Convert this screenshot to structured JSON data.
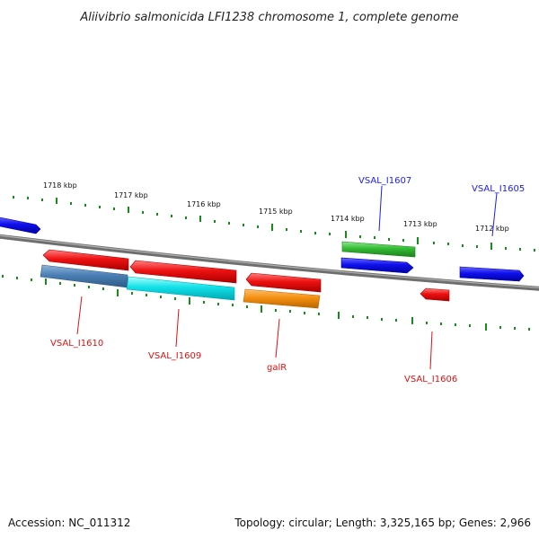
{
  "title": "Aliivibrio salmonicida LFI1238 chromosome 1, complete genome",
  "footer": {
    "accession": "Accession: NC_011312",
    "summary": "Topology: circular; Length: 3,325,165 bp; Genes: 2,966"
  },
  "scale_labels": [
    "1718 kbp",
    "1717 kbp",
    "1716 kbp",
    "1715 kbp",
    "1714 kbp",
    "1713 kbp",
    "1712 kbp"
  ],
  "gene_labels": [
    {
      "text": "VSAL_I1607",
      "color": "#1a1aff"
    },
    {
      "text": "VSAL_I1605",
      "color": "#1a1aff"
    },
    {
      "text": "VSAL_I1610",
      "color": "#e01010"
    },
    {
      "text": "VSAL_I1609",
      "color": "#e01010"
    },
    {
      "text": "galR",
      "color": "#e01010"
    },
    {
      "text": "VSAL_I1606",
      "color": "#e01010"
    }
  ],
  "colors": {
    "backbone": "#7a7a7a",
    "ticks": "#1a8a1a",
    "red": "#ee1111",
    "blue": "#1010ee",
    "green": "#33bb33",
    "steelblue": "#4a7fb5",
    "cyan": "#11e0e8",
    "orange": "#f59010"
  }
}
